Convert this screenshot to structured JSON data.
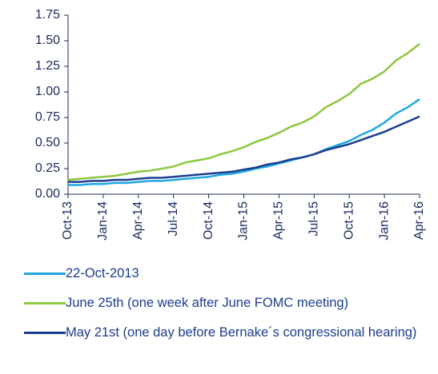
{
  "chart_data": {
    "type": "line",
    "categories": [
      "Oct-13",
      null,
      null,
      "Jan-14",
      null,
      null,
      "Apr-14",
      null,
      null,
      "Jul-14",
      null,
      null,
      "Oct-14",
      null,
      null,
      "Jan-15",
      null,
      null,
      "Apr-15",
      null,
      null,
      "Jul-15",
      null,
      null,
      "Oct-15",
      null,
      null,
      "Jan-16",
      null,
      null,
      "Apr-16"
    ],
    "series": [
      {
        "name": "22-Oct-2013",
        "color": "#1ea7e1",
        "values": [
          0.09,
          0.09,
          0.1,
          0.1,
          0.11,
          0.11,
          0.12,
          0.13,
          0.13,
          0.14,
          0.15,
          0.16,
          0.17,
          0.19,
          0.2,
          0.22,
          0.25,
          0.27,
          0.3,
          0.33,
          0.36,
          0.39,
          0.44,
          0.48,
          0.52,
          0.58,
          0.63,
          0.7,
          0.79,
          0.85,
          0.93
        ]
      },
      {
        "name": "June 25th (one week after June FOMC meeting)",
        "color": "#8dc63f",
        "values": [
          0.14,
          0.15,
          0.16,
          0.17,
          0.18,
          0.2,
          0.22,
          0.23,
          0.25,
          0.27,
          0.31,
          0.33,
          0.35,
          0.39,
          0.42,
          0.46,
          0.51,
          0.55,
          0.6,
          0.66,
          0.7,
          0.76,
          0.85,
          0.91,
          0.98,
          1.08,
          1.13,
          1.2,
          1.31,
          1.38,
          1.47
        ]
      },
      {
        "name": "May 21st (one day before Bernake´s congressional hearing)",
        "color": "#1b3d8f",
        "values": [
          0.12,
          0.12,
          0.13,
          0.13,
          0.14,
          0.14,
          0.15,
          0.16,
          0.16,
          0.17,
          0.18,
          0.19,
          0.2,
          0.21,
          0.22,
          0.24,
          0.26,
          0.29,
          0.31,
          0.34,
          0.36,
          0.39,
          0.43,
          0.46,
          0.49,
          0.53,
          0.57,
          0.61,
          0.66,
          0.71,
          0.76
        ]
      }
    ],
    "ylim": [
      0,
      1.75
    ],
    "yticks": [
      {
        "value": 0,
        "label": "0.00"
      },
      {
        "value": 0.25,
        "label": "0.25"
      },
      {
        "value": 0.5,
        "label": "0.50"
      },
      {
        "value": 0.75,
        "label": "0.75"
      },
      {
        "value": 1,
        "label": "1.00"
      },
      {
        "value": 1.25,
        "label": "1.25"
      },
      {
        "value": 1.5,
        "label": "1.50"
      },
      {
        "value": 1.75,
        "label": "1.75"
      }
    ]
  }
}
